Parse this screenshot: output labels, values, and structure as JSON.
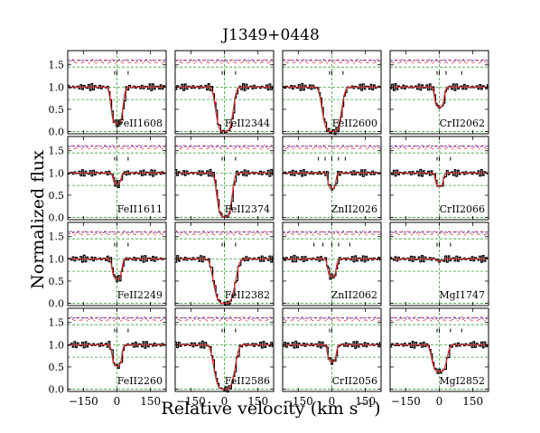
{
  "chart_data": {
    "type": "line",
    "title": "J1349+0448",
    "xlabel": "Relative velocity (km s",
    "xlabel_sup": "−1",
    "xlabel_close": ")",
    "ylabel": "Normalized flux",
    "xlim": [
      -220,
      220
    ],
    "ylim": [
      -0.05,
      1.82
    ],
    "xticks": [
      -150,
      0,
      150
    ],
    "xtick_labels": [
      "−150",
      "0",
      "150"
    ],
    "yticks": [
      0.0,
      0.5,
      1.0,
      1.5
    ],
    "ytick_labels": [
      "0.0",
      "0.5",
      "1.0",
      "1.5"
    ],
    "guides": {
      "vline": 0,
      "hlines": [
        0.0,
        1.0,
        0.72
      ],
      "noise_level": 1.6,
      "noise_zero": 1.45,
      "tick_y": [
        1.28,
        1.36
      ]
    },
    "colors": {
      "data": "#000000",
      "masked": "#888888",
      "model": "#e03030",
      "component": "#8a2be2",
      "blend": "#20c0c0",
      "guide": "#3fa03f",
      "noise_blue": "#3030d0",
      "noise_red": "#e02020"
    },
    "panels": [
      {
        "label": "FeII1608",
        "depth": 0.82,
        "width": 28,
        "components": [
          -10,
          0,
          50
        ]
      },
      {
        "label": "FeII2344",
        "depth": 1.0,
        "width": 40,
        "components": [
          -10,
          0,
          50
        ]
      },
      {
        "label": "FeII2600",
        "depth": 1.0,
        "width": 44,
        "components": [
          -10,
          0,
          50
        ]
      },
      {
        "label": "CrII2062",
        "depth": 0.45,
        "width": 22,
        "components": [
          -10,
          0,
          30,
          100
        ]
      },
      {
        "label": "FeII1611",
        "depth": 0.25,
        "width": 18,
        "components": [
          -10,
          0,
          50
        ]
      },
      {
        "label": "FeII2374",
        "depth": 0.98,
        "width": 35,
        "components": [
          -10,
          0,
          50
        ]
      },
      {
        "label": "ZnII2026",
        "depth": 0.35,
        "width": 18,
        "components": [
          -60,
          -30,
          0,
          30,
          60
        ]
      },
      {
        "label": "CrII2066",
        "depth": 0.3,
        "width": 18,
        "components": [
          -10,
          0,
          50
        ]
      },
      {
        "label": "FeII2249",
        "depth": 0.45,
        "width": 22,
        "components": [
          -10,
          0,
          50
        ]
      },
      {
        "label": "FeII2382",
        "depth": 1.0,
        "width": 50,
        "components": [
          -10,
          0,
          50
        ]
      },
      {
        "label": "ZnII2062",
        "depth": 0.4,
        "width": 20,
        "components": [
          -80,
          -40,
          0,
          30,
          80
        ]
      },
      {
        "label": "MgI1747",
        "depth": 0.05,
        "width": 15,
        "components": [
          -10,
          0,
          50
        ]
      },
      {
        "label": "FeII2260",
        "depth": 0.48,
        "width": 22,
        "components": [
          -10,
          0,
          50
        ]
      },
      {
        "label": "FeII2586",
        "depth": 1.0,
        "width": 48,
        "components": [
          -10,
          0,
          50
        ]
      },
      {
        "label": "CrII2056",
        "depth": 0.38,
        "width": 20,
        "components": [
          -10,
          0
        ]
      },
      {
        "label": "MgI2852",
        "depth": 0.6,
        "width": 35,
        "components": [
          -10,
          0,
          50,
          100
        ]
      }
    ]
  }
}
